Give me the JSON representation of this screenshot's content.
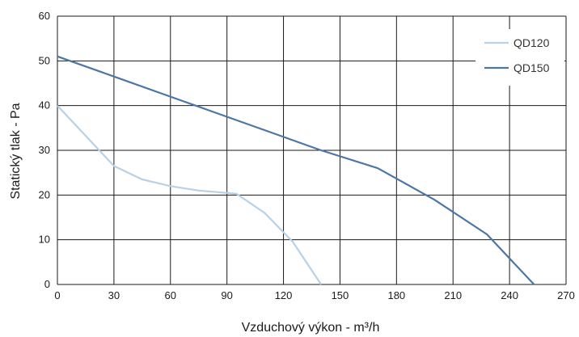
{
  "chart_data": {
    "type": "line",
    "xlabel": "Vzduchový výkon - m³/h",
    "ylabel": "Statický tlak - Pa",
    "xlim": [
      0,
      270
    ],
    "ylim": [
      0,
      60
    ],
    "x_ticks": [
      0,
      30,
      60,
      90,
      120,
      150,
      180,
      210,
      240,
      270
    ],
    "y_ticks": [
      0,
      10,
      20,
      30,
      40,
      50,
      60
    ],
    "grid": true,
    "legend": "top-right",
    "series": [
      {
        "name": "QD120",
        "color": "#b9d1e6",
        "x": [
          0,
          30,
          45,
          60,
          75,
          95,
          110,
          125,
          140
        ],
        "y": [
          40,
          26.5,
          23.5,
          22,
          21,
          20.3,
          16,
          9.5,
          0
        ]
      },
      {
        "name": "QD150",
        "color": "#4a76a8",
        "x": [
          0,
          30,
          60,
          90,
          120,
          140,
          170,
          200,
          228,
          253
        ],
        "y": [
          51,
          46.5,
          42,
          37.5,
          33,
          30,
          26,
          19,
          11.2,
          0
        ]
      }
    ]
  }
}
